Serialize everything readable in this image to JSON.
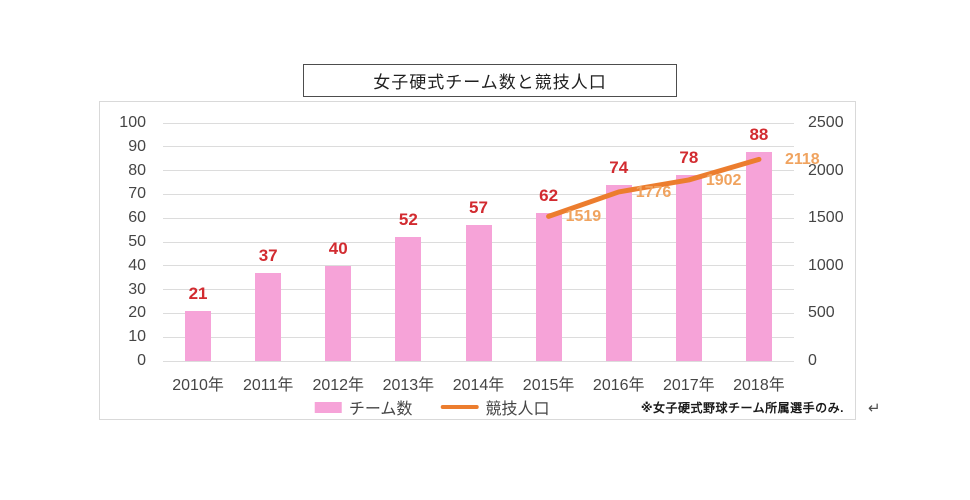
{
  "title_box": {
    "text": "女子硬式チーム数と競技人口"
  },
  "chart_data": {
    "type": "combo_bar_line",
    "title": "女子硬式チーム数と競技人口",
    "categories": [
      "2010年",
      "2011年",
      "2012年",
      "2013年",
      "2014年",
      "2015年",
      "2016年",
      "2017年",
      "2018年"
    ],
    "series": [
      {
        "name": "チーム数",
        "type": "bar",
        "axis": "left",
        "color": "#F6A3D8",
        "label_color": "#D22B30",
        "values": [
          21,
          37,
          40,
          52,
          57,
          62,
          74,
          78,
          88
        ]
      },
      {
        "name": "競技人口",
        "type": "line",
        "axis": "right",
        "color": "#EC7D2E",
        "label_color": "#F0A35F",
        "values": [
          null,
          null,
          null,
          null,
          null,
          1519,
          1776,
          1902,
          2118
        ]
      }
    ],
    "left_axis": {
      "min": 0,
      "max": 100,
      "step": 10
    },
    "right_axis": {
      "min": 0,
      "max": 2500,
      "step": 500
    },
    "grid": true,
    "legend_position": "bottom"
  },
  "legend": {
    "items": [
      {
        "label": "チーム数",
        "swatch": "bar"
      },
      {
        "label": "競技人口",
        "swatch": "line"
      }
    ]
  },
  "footnote": "※女子硬式野球チーム所属選手のみ.",
  "paragraph_mark": "↵"
}
